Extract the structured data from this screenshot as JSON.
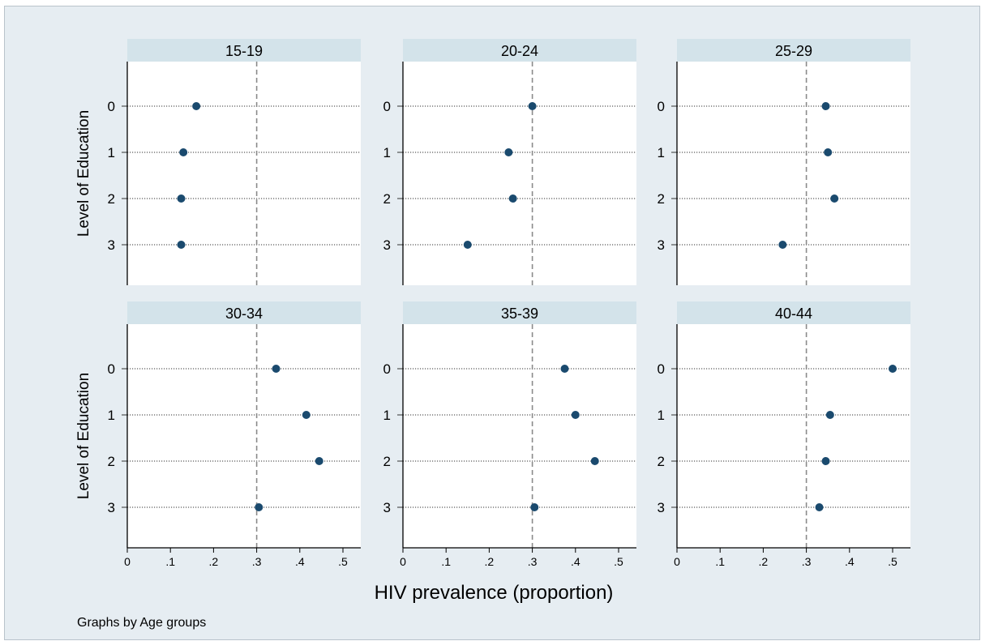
{
  "chart_data": {
    "type": "scatter",
    "layout": "small-multiples-dot-plot",
    "xlabel": "HIV prevalence (proportion)",
    "ylabel": "Level of Education",
    "note": "Graphs by Age groups",
    "xlim": [
      0,
      0.55
    ],
    "xticks": [
      0,
      0.1,
      0.2,
      0.3,
      0.4,
      0.5
    ],
    "xtick_labels": [
      "0",
      ".1",
      ".2",
      ".3",
      ".4",
      ".5"
    ],
    "categories": [
      "0",
      "1",
      "2",
      "3"
    ],
    "reference_line": 0.3,
    "grid": "dotted horizontal at each category",
    "panels": [
      {
        "title": "15-19",
        "values": [
          0.16,
          0.13,
          0.125,
          0.125
        ]
      },
      {
        "title": "20-24",
        "values": [
          0.3,
          0.245,
          0.255,
          0.15
        ]
      },
      {
        "title": "25-29",
        "values": [
          0.345,
          0.35,
          0.365,
          0.245
        ]
      },
      {
        "title": "30-34",
        "values": [
          0.345,
          0.415,
          0.445,
          0.305
        ]
      },
      {
        "title": "35-39",
        "values": [
          0.375,
          0.4,
          0.445,
          0.305
        ]
      },
      {
        "title": "40-44",
        "values": [
          0.5,
          0.355,
          0.345,
          0.33
        ]
      }
    ],
    "colors": {
      "marker": "#1a4a6e",
      "panel_header": "#d3e3ea",
      "background": "#e6edf2",
      "reference_line": "#8a8a8a"
    }
  }
}
